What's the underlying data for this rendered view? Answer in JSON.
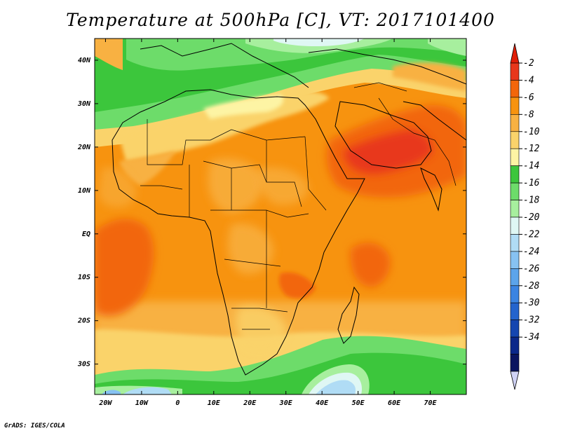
{
  "title": "Temperature at 500hPa [C], VT: 2017101400",
  "credit": "GrADS: IGES/COLA",
  "map": {
    "lon_range": [
      -23,
      80
    ],
    "lat_range": [
      -37,
      45
    ],
    "lon_ticks": [
      "20W",
      "10W",
      "0",
      "10E",
      "20E",
      "30E",
      "40E",
      "50E",
      "60E",
      "70E"
    ],
    "lat_ticks": [
      "40N",
      "30N",
      "20N",
      "10N",
      "EQ",
      "10S",
      "20S",
      "30S"
    ],
    "field": "Temperature at 500hPa",
    "units": "C"
  },
  "colorbar": {
    "labels": [
      "-2",
      "-4",
      "-6",
      "-8",
      "-10",
      "-12",
      "-14",
      "-16",
      "-18",
      "-20",
      "-22",
      "-24",
      "-26",
      "-28",
      "-30",
      "-32",
      "-34"
    ],
    "colors": [
      "#e8371b",
      "#f2660a",
      "#f7930f",
      "#f8b142",
      "#fad36b",
      "#fdf4a4",
      "#3cc63c",
      "#6ddc6a",
      "#a7ef9e",
      "#dff7f4",
      "#b0dcf5",
      "#87c2f2",
      "#5ca4ea",
      "#3b84e2",
      "#2464cd",
      "#1546b0",
      "#0b288a",
      "#0a1560"
    ],
    "top_cap_color": "#e01e08",
    "bottom_cap_color": "#cfd2f4"
  }
}
